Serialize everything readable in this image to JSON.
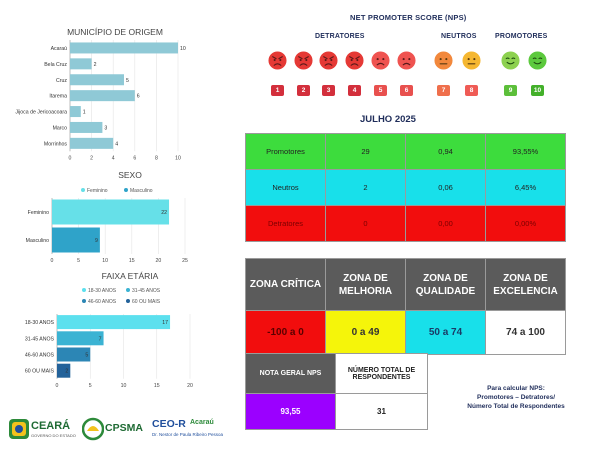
{
  "charts": {
    "municipio": {
      "title": "MUNICÍPIO DE ORIGEM",
      "chart_data": {
        "type": "bar",
        "orientation": "horizontal",
        "categories": [
          "Acaraú",
          "Bela Cruz",
          "Cruz",
          "Itarema",
          "Jijoca de Jericoacoara",
          "Marco",
          "Morrinhos"
        ],
        "values": [
          10,
          2,
          5,
          6,
          1,
          3,
          4
        ],
        "xlim": [
          0,
          10
        ],
        "xticks": [
          "0",
          "2",
          "4",
          "6",
          "8",
          "10"
        ],
        "color": "#8fc9d6"
      }
    },
    "sexo": {
      "title": "SEXO",
      "legend": [
        "Feminino",
        "Masculino"
      ],
      "legend_colors": [
        "#66e0e8",
        "#2fa3c9"
      ],
      "chart_data": {
        "type": "bar",
        "orientation": "horizontal",
        "categories": [
          "Feminino",
          "Masculino"
        ],
        "values": [
          22,
          9
        ],
        "xlim": [
          0,
          25
        ],
        "xticks": [
          "0",
          "5",
          "10",
          "15",
          "20",
          "25"
        ],
        "colors": [
          "#66e0e8",
          "#2fa3c9"
        ]
      }
    },
    "faixa": {
      "title": "FAIXA ETÁRIA",
      "legend": [
        "18-30 ANOS",
        "31-45 ANOS",
        "46-60 ANOS",
        "60 OU MAIS"
      ],
      "legend_colors": [
        "#5ce0ee",
        "#3bb3d3",
        "#2c86b5",
        "#23629a"
      ],
      "chart_data": {
        "type": "bar",
        "orientation": "horizontal",
        "categories": [
          "18-30 ANOS",
          "31-45 ANOS",
          "46-60 ANOS",
          "60 OU MAIS"
        ],
        "values": [
          17,
          7,
          5,
          2
        ],
        "xlim": [
          0,
          20
        ],
        "xticks": [
          "0",
          "5",
          "10",
          "15",
          "20"
        ],
        "colors": [
          "#5ce0ee",
          "#3bb3d3",
          "#2c86b5",
          "#23629a"
        ]
      }
    }
  },
  "nps": {
    "title": "NET PROMOTER SCORE (NPS)",
    "groups": {
      "detratores": "DETRATORES",
      "neutros": "NEUTROS",
      "promotores": "PROMOTORES"
    },
    "scores": [
      {
        "label": "1",
        "face": "#e53935",
        "badge": "#d32f3c",
        "mood": "angry"
      },
      {
        "label": "2",
        "face": "#e53935",
        "badge": "#d32f3c",
        "mood": "angry"
      },
      {
        "label": "3",
        "face": "#e53935",
        "badge": "#d32f3c",
        "mood": "angry"
      },
      {
        "label": "4",
        "face": "#e53935",
        "badge": "#d32f3c",
        "mood": "angry"
      },
      {
        "label": "5",
        "face": "#ef5350",
        "badge": "#e8504e",
        "mood": "sad"
      },
      {
        "label": "6",
        "face": "#ef5350",
        "badge": "#e8504e",
        "mood": "sad"
      },
      {
        "label": "7",
        "face": "#f2883c",
        "badge": "#ef6f4c",
        "mood": "neutral"
      },
      {
        "label": "8",
        "face": "#f5b731",
        "badge": "#ef5b55",
        "mood": "neutral"
      },
      {
        "label": "9",
        "face": "#8dd14f",
        "badge": "#5cbf3a",
        "mood": "happy"
      },
      {
        "label": "10",
        "face": "#5cc93d",
        "badge": "#43b02a",
        "mood": "happy"
      }
    ]
  },
  "period": "JULHO 2025",
  "results": [
    {
      "label": "Promotores",
      "count": "29",
      "ratio": "0,94",
      "percent": "93,55%",
      "color": "#3ddc3d"
    },
    {
      "label": "Neutros",
      "count": "2",
      "ratio": "0,06",
      "percent": "6,45%",
      "color": "#18e0ea"
    },
    {
      "label": "Detratores",
      "count": "0",
      "ratio": "0,00",
      "percent": "0,00%",
      "color": "#f20d0d"
    }
  ],
  "zones": [
    {
      "label": "ZONA CRÍTICA",
      "range": "-100 a 0",
      "color": "#f20d0d",
      "text_color": "#5a0000"
    },
    {
      "label": "ZONA DE MELHORIA",
      "range": "0 a 49",
      "color": "#f5f50a",
      "text_color": "#333333"
    },
    {
      "label": "ZONA DE QUALIDADE",
      "range": "50 a 74",
      "color": "#18e0ea",
      "text_color": "#1a3a66"
    },
    {
      "label": "ZONA DE EXCELENCIA",
      "range": "74 a 100",
      "color": "#ffffff",
      "text_color": "#333333"
    }
  ],
  "summary": {
    "nota_label": "NOTA GERAL NPS",
    "nota_value": "93,55",
    "nota_color": "#9b00ff",
    "total_label": "NÚMERO TOTAL DE RESPONDENTES",
    "total_value": "31"
  },
  "formula": {
    "line1": "Para calcular NPS:",
    "line2": "Promotores – Detratores/",
    "line3": "Número Total de Respondentes"
  },
  "logos": {
    "ceara": "CEARÁ",
    "ceara_sub": "GOVERNO DO ESTADO",
    "cpsma": "CPSMA",
    "ceo": "CEO-R",
    "ceo_city": "Acaraú",
    "ceo_sub": "Dr. Nestor de Paula Ribeiro Pessoa"
  }
}
